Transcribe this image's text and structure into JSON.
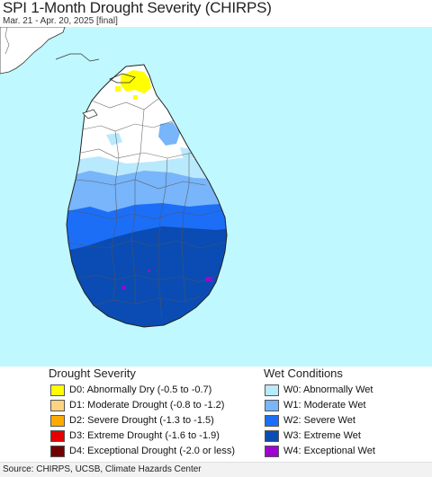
{
  "header": {
    "title": "SPI 1-Month Drought Severity (CHIRPS)",
    "subtitle": "Mar. 21 - Apr. 20, 2025 [final]"
  },
  "map": {
    "ocean_color": "#bff8ff",
    "land_color": "#ffffff"
  },
  "legend": {
    "drought": {
      "heading": "Drought Severity",
      "items": [
        {
          "label": "D0: Abnormally Dry (-0.5 to -0.7)",
          "color": "#ffff00"
        },
        {
          "label": "D1: Moderate Drought (-0.8 to -1.2)",
          "color": "#fcd37f"
        },
        {
          "label": "D2: Severe Drought (-1.3 to -1.5)",
          "color": "#ffaa00"
        },
        {
          "label": "D3: Extreme Drought (-1.6 to -1.9)",
          "color": "#e60000"
        },
        {
          "label": "D4: Exceptional Drought (-2.0 or less)",
          "color": "#730000"
        }
      ]
    },
    "wet": {
      "heading": "Wet Conditions",
      "items": [
        {
          "label": "W0: Abnormally Wet",
          "color": "#b9e9fc"
        },
        {
          "label": "W1: Moderate Wet",
          "color": "#78b5fa"
        },
        {
          "label": "W2: Severe Wet",
          "color": "#1c6ef7"
        },
        {
          "label": "W3: Extreme Wet",
          "color": "#0a4cb4"
        },
        {
          "label": "W4: Exceptional Wet",
          "color": "#a000d2"
        }
      ]
    }
  },
  "footer": {
    "source": "Source: CHIRPS, UCSB, Climate Hazards Center"
  }
}
